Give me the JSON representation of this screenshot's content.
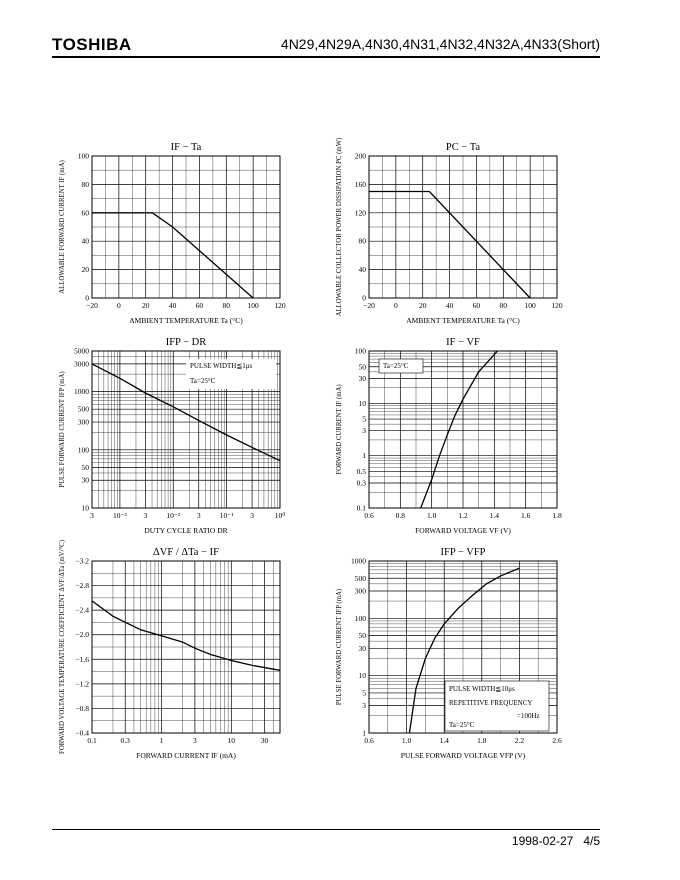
{
  "header": {
    "brand": "TOSHIBA",
    "title": "4N29,4N29A,4N30,4N31,4N32,4N32A,4N33(Short)"
  },
  "footer": {
    "date": "1998-02-27",
    "page": "4/5"
  },
  "chart_data": [
    {
      "id": "if-ta",
      "type": "line",
      "title": "IF − Ta",
      "xlabel": "AMBIENT TEMPERATURE Ta (°C)",
      "ylabel": "ALLOWABLE FORWARD CURRENT IF (mA)",
      "xscale": "linear",
      "yscale": "linear",
      "xlim": [
        -20,
        120
      ],
      "ylim": [
        0,
        100
      ],
      "xticks": [
        -20,
        0,
        20,
        40,
        60,
        80,
        100,
        120
      ],
      "xticklabels": [
        "−20",
        "0",
        "20",
        "40",
        "60",
        "80",
        "100",
        "120"
      ],
      "yticks": [
        0,
        20,
        40,
        60,
        80,
        100
      ],
      "yticklabels": [
        "0",
        "20",
        "40",
        "60",
        "80",
        "100"
      ],
      "grid": true,
      "series": [
        {
          "x": [
            -20,
            25,
            40,
            100
          ],
          "y": [
            60,
            60,
            50,
            0
          ]
        }
      ],
      "annotations": []
    },
    {
      "id": "pc-ta",
      "type": "line",
      "title": "PC − Ta",
      "xlabel": "AMBIENT TEMPERATURE Ta (°C)",
      "ylabel": "ALLOWABLE COLLECTOR POWER DISSIPATION PC (mW)",
      "xscale": "linear",
      "yscale": "linear",
      "xlim": [
        -20,
        120
      ],
      "ylim": [
        0,
        200
      ],
      "xticks": [
        -20,
        0,
        20,
        40,
        60,
        80,
        100,
        120
      ],
      "xticklabels": [
        "−20",
        "0",
        "20",
        "40",
        "60",
        "80",
        "100",
        "120"
      ],
      "yticks": [
        0,
        40,
        80,
        120,
        160,
        200
      ],
      "yticklabels": [
        "0",
        "40",
        "80",
        "120",
        "160",
        "200"
      ],
      "grid": true,
      "series": [
        {
          "x": [
            -20,
            25,
            100
          ],
          "y": [
            150,
            150,
            0
          ]
        }
      ],
      "annotations": []
    },
    {
      "id": "ifp-dr",
      "type": "line",
      "title": "IFP − DR",
      "xlabel": "DUTY CYCLE RATIO DR",
      "ylabel": "PULSE FORWARD CURRENT IFP (mA)",
      "xscale": "log",
      "yscale": "log",
      "xlim": [
        0.0003,
        1
      ],
      "ylim": [
        10,
        5000
      ],
      "xticks": [
        0.0003,
        0.001,
        0.003,
        0.01,
        0.03,
        0.1,
        0.3,
        1
      ],
      "xticklabels": [
        "3",
        "10⁻³",
        "3",
        "10⁻²",
        "3",
        "10⁻¹",
        "3",
        "10⁰"
      ],
      "yticks": [
        10,
        30,
        50,
        100,
        300,
        500,
        1000,
        3000,
        5000
      ],
      "yticklabels": [
        "10",
        "30",
        "50",
        "100",
        "300",
        "500",
        "1000",
        "3000",
        "5000"
      ],
      "grid": true,
      "series": [
        {
          "x": [
            0.0003,
            0.001,
            0.003,
            0.01,
            0.03,
            0.1,
            0.3,
            1
          ],
          "y": [
            3000,
            1700,
            950,
            550,
            320,
            180,
            110,
            65
          ]
        }
      ],
      "annotations": [
        "PULSE WIDTH≦1μs",
        "Ta=25°C"
      ]
    },
    {
      "id": "if-vf",
      "type": "line",
      "title": "IF − VF",
      "xlabel": "FORWARD VOLTAGE VF (V)",
      "ylabel": "FORWARD CURRENT IF (mA)",
      "xscale": "linear",
      "yscale": "log",
      "xlim": [
        0.6,
        1.8
      ],
      "ylim": [
        0.1,
        100
      ],
      "xticks": [
        0.6,
        0.8,
        1.0,
        1.2,
        1.4,
        1.6,
        1.8
      ],
      "xticklabels": [
        "0.6",
        "0.8",
        "1.0",
        "1.2",
        "1.4",
        "1.6",
        "1.8"
      ],
      "yticks": [
        0.1,
        0.3,
        0.5,
        1,
        3,
        5,
        10,
        30,
        50,
        100
      ],
      "yticklabels": [
        "0.1",
        "0.3",
        "0.5",
        "1",
        "3",
        "5",
        "10",
        "30",
        "50",
        "100"
      ],
      "grid": true,
      "series": [
        {
          "x": [
            0.93,
            1.0,
            1.05,
            1.1,
            1.15,
            1.2,
            1.3,
            1.42
          ],
          "y": [
            0.1,
            0.35,
            1,
            2.5,
            6,
            12,
            40,
            100
          ]
        }
      ],
      "annotations": [
        "Ta=25°C"
      ]
    },
    {
      "id": "dvf-if",
      "type": "line",
      "title": "ΔVF / ΔTa − IF",
      "xlabel": "FORWARD CURRENT IF (mA)",
      "ylabel": "FORWARD VOLTAGE TEMPERATURE COEFFICIENT ΔVF/ΔTa (mV/°C)",
      "xscale": "log",
      "yscale": "linear",
      "xlim": [
        0.1,
        50
      ],
      "ylim": [
        -0.4,
        -3.2
      ],
      "xticks": [
        0.1,
        0.3,
        1,
        3,
        10,
        30
      ],
      "xticklabels": [
        "0.1",
        "0.3",
        "1",
        "3",
        "10",
        "30"
      ],
      "yticks": [
        -0.4,
        -0.8,
        -1.2,
        -1.6,
        -2.0,
        -2.4,
        -2.8,
        -3.2
      ],
      "yticklabels": [
        "−0.4",
        "−0.8",
        "−1.2",
        "−1.6",
        "−2.0",
        "−2.4",
        "−2.8",
        "−3.2"
      ],
      "grid": true,
      "series": [
        {
          "x": [
            0.1,
            0.2,
            0.5,
            1,
            2,
            3,
            5,
            10,
            20,
            50
          ],
          "y": [
            -2.55,
            -2.3,
            -2.08,
            -1.98,
            -1.88,
            -1.78,
            -1.68,
            -1.58,
            -1.5,
            -1.42
          ]
        }
      ],
      "annotations": []
    },
    {
      "id": "ifp-vfp",
      "type": "line",
      "title": "IFP − VFP",
      "xlabel": "PULSE FORWARD VOLTAGE VFP (V)",
      "ylabel": "PULSE FORWARD CURRENT IFP (mA)",
      "xscale": "linear",
      "yscale": "log",
      "xlim": [
        0.6,
        2.6
      ],
      "ylim": [
        1,
        1000
      ],
      "xticks": [
        0.6,
        1.0,
        1.4,
        1.8,
        2.2,
        2.6
      ],
      "xticklabels": [
        "0.6",
        "1.0",
        "1.4",
        "1.8",
        "2.2",
        "2.6"
      ],
      "yticks": [
        1,
        3,
        5,
        10,
        30,
        50,
        100,
        300,
        500,
        1000
      ],
      "yticklabels": [
        "1",
        "3",
        "5",
        "10",
        "30",
        "50",
        "100",
        "300",
        "500",
        "1000"
      ],
      "grid": true,
      "series": [
        {
          "x": [
            1.03,
            1.1,
            1.2,
            1.3,
            1.4,
            1.55,
            1.7,
            1.85,
            2.0,
            2.2
          ],
          "y": [
            1,
            6,
            20,
            45,
            80,
            150,
            250,
            400,
            550,
            750
          ]
        }
      ],
      "annotations": [
        "PULSE WIDTH≦10μs",
        "REPETITIVE FREQUENCY",
        "=100Hz",
        "Ta=25°C"
      ]
    }
  ]
}
